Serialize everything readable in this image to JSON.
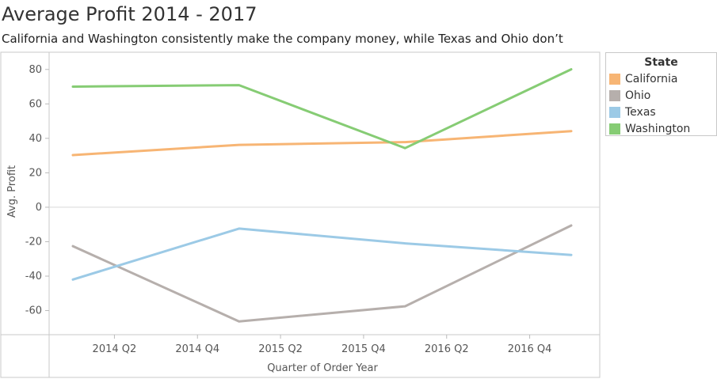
{
  "chart_data": {
    "type": "line",
    "title": "Average Profit 2014 - 2017",
    "subtitle": "California and Washington consistently  make the company money, while Texas and Ohio don’t",
    "xlabel": "Quarter of Order Year",
    "ylabel": "Avg. Profit",
    "x_tick_labels": [
      "2014 Q2",
      "2014 Q4",
      "2015 Q2",
      "2015 Q4",
      "2016 Q2",
      "2016 Q4"
    ],
    "yticks": [
      80,
      60,
      40,
      20,
      0,
      -20,
      -40,
      -60
    ],
    "ylim": [
      -74,
      90
    ],
    "x": [
      "2014 Q1",
      "2015 Q1",
      "2016 Q1",
      "2017 Q1"
    ],
    "xlim": [
      "2014 Q1",
      "2017 Q1"
    ],
    "legend_title": "State",
    "legend_position": "right",
    "series": [
      {
        "name": "California",
        "color": "#f7b574",
        "values": [
          30.3,
          36.2,
          37.8,
          44.2
        ]
      },
      {
        "name": "Ohio",
        "color": "#b6afac",
        "values": [
          -22.6,
          -66.3,
          -57.5,
          -10.6
        ]
      },
      {
        "name": "Texas",
        "color": "#9ccae6",
        "values": [
          -42.0,
          -12.4,
          -21.0,
          -27.7
        ]
      },
      {
        "name": "Washington",
        "color": "#86cc74",
        "values": [
          70.0,
          70.9,
          34.3,
          80.1
        ]
      }
    ]
  }
}
